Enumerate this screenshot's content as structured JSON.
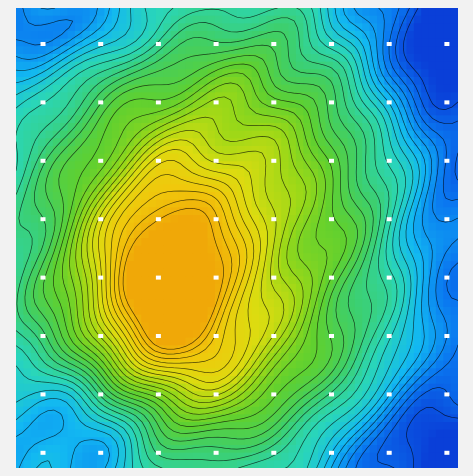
{
  "chart_data": {
    "type": "heatmap",
    "title": "",
    "xlabel": "",
    "ylabel": "",
    "legend": "none",
    "grid": false,
    "colormap": [
      "#0a3fd8",
      "#0a78f0",
      "#12b8f2",
      "#2ad6b8",
      "#3ecf6a",
      "#5fd030",
      "#9ad818",
      "#dcdc10",
      "#f0c80c",
      "#f0a808"
    ],
    "contour_line_color": "#000000",
    "contour_level_count": 28,
    "value_range": [
      0,
      1
    ],
    "peak": {
      "x": 0.33,
      "y": 0.6,
      "value": 0.95
    },
    "sample_grid": {
      "columns": 8,
      "rows": 8,
      "marker_color": "#ffffff"
    }
  }
}
